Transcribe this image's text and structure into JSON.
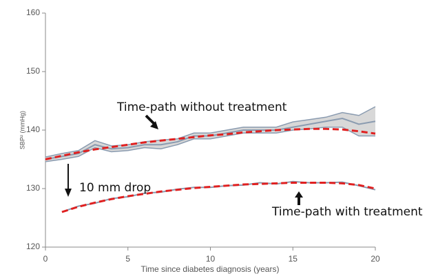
{
  "chart_data": {
    "type": "line",
    "xlabel": "Time since diabetes diagnosis (years)",
    "ylabel": "SBP² (mmHg)",
    "x": [
      0,
      1,
      2,
      3,
      4,
      5,
      6,
      7,
      8,
      9,
      10,
      11,
      12,
      13,
      14,
      15,
      16,
      17,
      18,
      19,
      20
    ],
    "xlim": [
      0,
      20
    ],
    "xticks": [
      0,
      5,
      10,
      15,
      20
    ],
    "ylim": [
      120,
      160
    ],
    "yticks": [
      120,
      130,
      140,
      150,
      160
    ],
    "series": [
      {
        "color": "#8a9bb0",
        "style": "solid",
        "values": [
          135,
          135.5,
          136,
          137.5,
          136.8,
          137,
          137.5,
          137.5,
          138,
          139,
          139,
          139.5,
          140,
          140,
          140,
          140.5,
          141,
          141.5,
          142,
          141,
          141.5
        ],
        "band": {
          "color": "#d8d8d8",
          "upper": [
            135.4,
            136,
            136.5,
            138.2,
            137.3,
            137.5,
            138,
            138.3,
            138.5,
            139.5,
            139.5,
            140,
            140.5,
            140.5,
            140.5,
            141.4,
            141.8,
            142.2,
            143,
            142.5,
            144
          ],
          "lower": [
            134.6,
            135,
            135.5,
            137,
            136.3,
            136.5,
            137,
            136.8,
            137.5,
            138.5,
            138.5,
            139,
            139.5,
            139.5,
            139.5,
            140,
            140.2,
            140.5,
            140.5,
            139,
            139
          ]
        }
      },
      {
        "color": "#e02020",
        "style": "dashed",
        "values": [
          135,
          135.6,
          136.2,
          136.7,
          137.1,
          137.5,
          137.9,
          138.2,
          138.5,
          138.8,
          139.1,
          139.3,
          139.6,
          139.8,
          140,
          140.1,
          140.2,
          140.2,
          140.1,
          139.8,
          139.4
        ]
      },
      {
        "color": "#8a9bb0",
        "style": "solid",
        "values": [
          null,
          126,
          127,
          127.5,
          128.3,
          128.6,
          129.2,
          129.4,
          129.9,
          130.2,
          130.2,
          130.5,
          130.6,
          131,
          130.8,
          131.2,
          131,
          131,
          131.1,
          130.5,
          129.8
        ]
      },
      {
        "color": "#e02020",
        "style": "dashed",
        "values": [
          null,
          126,
          126.9,
          127.6,
          128.2,
          128.7,
          129.1,
          129.5,
          129.8,
          130.1,
          130.3,
          130.5,
          130.7,
          130.8,
          130.9,
          131,
          131,
          131,
          130.9,
          130.6,
          130
        ]
      }
    ],
    "annotations": [
      "Time-path without treatment",
      "10 mm drop",
      "Time-path with treatment"
    ]
  }
}
